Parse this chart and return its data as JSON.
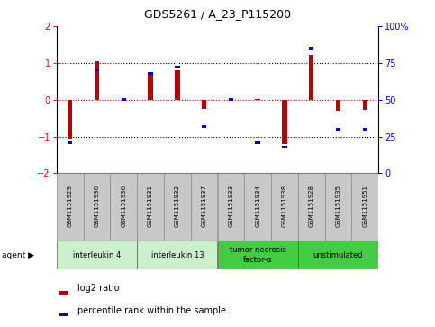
{
  "title": "GDS5261 / A_23_P115200",
  "samples": [
    "GSM1151929",
    "GSM1151930",
    "GSM1151936",
    "GSM1151931",
    "GSM1151932",
    "GSM1151937",
    "GSM1151933",
    "GSM1151934",
    "GSM1151938",
    "GSM1151928",
    "GSM1151935",
    "GSM1151951"
  ],
  "log2_ratio": [
    -1.05,
    1.05,
    0.02,
    0.75,
    0.8,
    -0.25,
    0.02,
    0.02,
    -1.2,
    1.22,
    -0.3,
    -0.28
  ],
  "percentile_rank": [
    21,
    70,
    50,
    68,
    72,
    32,
    50,
    21,
    18,
    85,
    30,
    30
  ],
  "agents": [
    {
      "label": "interleukin 4",
      "start": 0,
      "end": 3,
      "color": "#ccf0cc"
    },
    {
      "label": "interleukin 13",
      "start": 3,
      "end": 6,
      "color": "#ccf0cc"
    },
    {
      "label": "tumor necrosis\nfactor-α",
      "start": 6,
      "end": 9,
      "color": "#44cc44"
    },
    {
      "label": "unstimulated",
      "start": 9,
      "end": 12,
      "color": "#44cc44"
    }
  ],
  "ylim": [
    -2,
    2
  ],
  "yticks_left": [
    -2,
    -1,
    0,
    1,
    2
  ],
  "yticks_right": [
    0,
    25,
    50,
    75,
    100
  ],
  "bar_color_red": "#bb0000",
  "bar_color_blue": "#0000cc",
  "sample_box_color": "#c8c8c8",
  "bg_color": "#ffffff"
}
